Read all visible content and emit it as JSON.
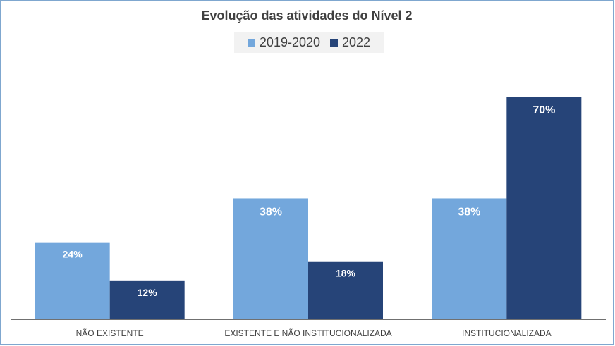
{
  "chart_data": {
    "type": "bar",
    "title": "Evolução das atividades do Nível 2",
    "categories": [
      "NÃO EXISTENTE",
      "EXISTENTE E NÃO INSTITUCIONALIZADA",
      "INSTITUCIONALIZADA"
    ],
    "series": [
      {
        "name": "2019-2020",
        "values": [
          24,
          38,
          38
        ],
        "labels": [
          "24%",
          "38%",
          "38%"
        ],
        "color": "#73a7dc"
      },
      {
        "name": "2022",
        "values": [
          12,
          18,
          70
        ],
        "labels": [
          "12%",
          "18%",
          "70%"
        ],
        "color": "#264478"
      }
    ],
    "xlabel": "",
    "ylabel": "",
    "ylim": [
      0,
      80
    ],
    "grid": false,
    "legend_position": "top"
  }
}
